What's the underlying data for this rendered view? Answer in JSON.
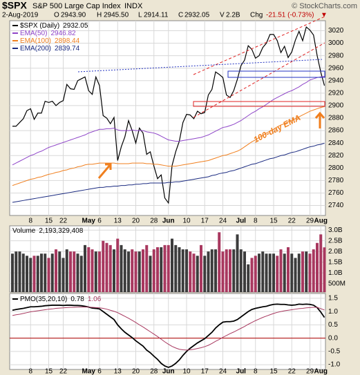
{
  "header": {
    "symbol": "$SPX",
    "name": "S&P 500 Large Cap Index",
    "exchange": "INDX",
    "source": "© StockCharts.com",
    "date": "2-Aug-2019",
    "quote": [
      {
        "label": "O",
        "value": "2943.90"
      },
      {
        "label": "H",
        "value": "2945.50"
      },
      {
        "label": "L",
        "value": "2914.11"
      },
      {
        "label": "C",
        "value": "2932.05"
      },
      {
        "label": "V",
        "value": "2.2B"
      },
      {
        "label": "Chg",
        "value": "-21.51 (-0.73%)"
      }
    ],
    "direction": "▼",
    "annotation": "100-day EMA",
    "volume_label": "Volume",
    "volume_text": "2,193,329,408"
  },
  "chart_data": [
    {
      "type": "line",
      "ylim": [
        2724,
        3036
      ],
      "yticks": [
        2740,
        2760,
        2780,
        2800,
        2820,
        2840,
        2860,
        2880,
        2900,
        2920,
        2940,
        2960,
        2980,
        3000,
        3020
      ],
      "grid": true,
      "categories": [
        null,
        null,
        null,
        null,
        null,
        "8",
        null,
        null,
        null,
        null,
        "15",
        null,
        null,
        null,
        "22",
        null,
        null,
        null,
        null,
        null,
        null,
        "May",
        null,
        null,
        "6",
        null,
        null,
        null,
        null,
        "13",
        null,
        null,
        null,
        null,
        "20",
        null,
        null,
        null,
        null,
        "28",
        null,
        null,
        null,
        "Jun",
        null,
        null,
        null,
        null,
        "10",
        null,
        null,
        null,
        null,
        "17",
        null,
        null,
        null,
        null,
        "24",
        null,
        null,
        null,
        null,
        "Jul",
        null,
        null,
        null,
        "8",
        null,
        null,
        null,
        null,
        "15",
        null,
        null,
        null,
        null,
        "22",
        null,
        null,
        null,
        null,
        "29",
        null,
        null,
        "Aug",
        null
      ],
      "series": [
        {
          "name": "$SPX (Daily)",
          "color": "#000000",
          "values": [
            2867,
            2867,
            2873,
            2879,
            2892,
            2895,
            2878,
            2888,
            2888,
            2907,
            2905,
            2907,
            2900,
            2905,
            2908,
            2934,
            2927,
            2926,
            2940,
            2943,
            2946,
            2924,
            2918,
            2946,
            2932,
            2884,
            2880,
            2871,
            2881,
            2812,
            2834,
            2850,
            2876,
            2860,
            2840,
            2864,
            2856,
            2822,
            2826,
            2803,
            2783,
            2789,
            2752,
            2744,
            2804,
            2826,
            2843,
            2873,
            2886,
            2885,
            2879,
            2891,
            2887,
            2889,
            2917,
            2926,
            2954,
            2950,
            2945,
            2917,
            2913,
            2924,
            2942,
            2964,
            2973,
            2996,
            2990,
            2976,
            2980,
            2993,
            3000,
            3014,
            3014,
            3004,
            2985,
            2995,
            2977,
            2986,
            3005,
            3019,
            3004,
            3026,
            3021,
            3013,
            2980,
            2953.56,
            2932.05
          ]
        },
        {
          "name": "EMA(50)",
          "color": "#8e44c8",
          "values": [
            2805,
            2808,
            2811,
            2814,
            2817,
            2820,
            2822,
            2825,
            2827,
            2830,
            2833,
            2835,
            2837,
            2839,
            2841,
            2843,
            2845,
            2847,
            2849,
            2851,
            2853,
            2856,
            2858,
            2860,
            2862,
            2862,
            2863,
            2863,
            2864,
            2861,
            2860,
            2860,
            2860,
            2861,
            2860,
            2860,
            2860,
            2858,
            2857,
            2856,
            2854,
            2851,
            2848,
            2845,
            2844,
            2843,
            2843,
            2844,
            2845,
            2846,
            2847,
            2848,
            2849,
            2851,
            2853,
            2856,
            2859,
            2862,
            2865,
            2866,
            2868,
            2870,
            2873,
            2876,
            2880,
            2884,
            2888,
            2891,
            2895,
            2898,
            2902,
            2906,
            2910,
            2913,
            2916,
            2919,
            2922,
            2924,
            2927,
            2930,
            2934,
            2937,
            2941,
            2943,
            2945,
            2946,
            2946.82
          ]
        },
        {
          "name": "EMA(100)",
          "color": "#f07f1e",
          "values": [
            2772,
            2774,
            2776,
            2778,
            2780,
            2782,
            2783,
            2785,
            2786,
            2788,
            2790,
            2791,
            2793,
            2794,
            2796,
            2797,
            2799,
            2800,
            2802,
            2803,
            2805,
            2806,
            2806,
            2807,
            2808,
            2808,
            2808,
            2808,
            2808,
            2807,
            2807,
            2807,
            2807,
            2808,
            2808,
            2808,
            2808,
            2807,
            2807,
            2806,
            2806,
            2805,
            2804,
            2803,
            2803,
            2803,
            2804,
            2805,
            2806,
            2807,
            2808,
            2809,
            2810,
            2811,
            2812,
            2814,
            2816,
            2818,
            2820,
            2821,
            2823,
            2825,
            2827,
            2830,
            2834,
            2838,
            2842,
            2845,
            2849,
            2852,
            2856,
            2859,
            2862,
            2866,
            2869,
            2871,
            2874,
            2876,
            2879,
            2882,
            2885,
            2888,
            2891,
            2893,
            2895,
            2897,
            2898.44
          ]
        },
        {
          "name": "EMA(200)",
          "color": "#1a2a80",
          "values": [
            2745,
            2746,
            2747,
            2748,
            2749,
            2750,
            2751,
            2752,
            2753,
            2754,
            2755,
            2756,
            2757,
            2758,
            2759,
            2760,
            2761,
            2762,
            2763,
            2764,
            2765,
            2766,
            2767,
            2768,
            2769,
            2769,
            2770,
            2770,
            2771,
            2771,
            2772,
            2772,
            2773,
            2773,
            2774,
            2774,
            2775,
            2775,
            2776,
            2776,
            2776,
            2776,
            2776,
            2777,
            2777,
            2778,
            2778,
            2779,
            2780,
            2781,
            2782,
            2783,
            2784,
            2785,
            2786,
            2788,
            2789,
            2791,
            2792,
            2793,
            2795,
            2796,
            2798,
            2800,
            2802,
            2804,
            2806,
            2807,
            2809,
            2811,
            2813,
            2815,
            2816,
            2818,
            2820,
            2821,
            2823,
            2825,
            2826,
            2828,
            2830,
            2832,
            2834,
            2835,
            2837,
            2838,
            2839.74
          ]
        }
      ]
    },
    {
      "type": "bar",
      "ylim": [
        0.1,
        3.2
      ],
      "grid": true,
      "up_color": "#3c3c3c",
      "down_color": "#a8385f",
      "yticks": [
        {
          "value": 3,
          "label": "3.0B"
        },
        {
          "value": 2.5,
          "label": "2.5B"
        },
        {
          "value": 2,
          "label": "2.0B"
        },
        {
          "value": 1.5,
          "label": "1.5B"
        },
        {
          "value": 1,
          "label": "1.0B"
        },
        {
          "value": 0.5,
          "label": "500M"
        }
      ],
      "values": [
        1.9,
        2.0,
        2.0,
        1.9,
        1.8,
        1.7,
        1.8,
        1.8,
        1.9,
        1.9,
        1.7,
        1.9,
        2.1,
        2.0,
        1.7,
        2.1,
        2.0,
        2.0,
        1.9,
        1.8,
        2.3,
        2.2,
        2.1,
        2.0,
        2.0,
        2.5,
        2.4,
        2.3,
        2.1,
        2.6,
        2.3,
        2.1,
        2.0,
        2.1,
        2.0,
        2.0,
        2.1,
        2.3,
        1.8,
        2.1,
        2.2,
        2.2,
        2.3,
        2.3,
        2.6,
        2.3,
        2.2,
        2.1,
        2.1,
        2.0,
        1.9,
        1.8,
        2.3,
        1.8,
        2.0,
        2.1,
        2.1,
        2.9,
        2.0,
        2.1,
        2.1,
        2.1,
        2.8,
        2.1,
        2.0,
        1.4,
        1.7,
        1.8,
        1.9,
        2.0,
        1.9,
        1.9,
        1.9,
        1.8,
        2.1,
        1.9,
        2.2,
        1.9,
        1.7,
        1.9,
        2.0,
        2.0,
        1.9,
        2.1,
        2.4,
        2.8,
        2.193329408
      ]
    },
    {
      "type": "line",
      "ylim": [
        -1.18,
        1.68
      ],
      "grid": true,
      "zero_color": "#b00000",
      "yticks": [
        1.5,
        {
          "value": 1,
          "label": "1.0"
        },
        0.5,
        {
          "value": 0,
          "label": "0.0"
        },
        -0.5,
        {
          "value": -1,
          "label": "-1.0"
        }
      ],
      "categories": [
        null,
        null,
        null,
        null,
        null,
        "8",
        null,
        null,
        null,
        null,
        "15",
        null,
        null,
        null,
        "22",
        null,
        null,
        null,
        null,
        null,
        null,
        "May",
        null,
        null,
        "6",
        null,
        null,
        null,
        null,
        "13",
        null,
        null,
        null,
        null,
        "20",
        null,
        null,
        null,
        null,
        "28",
        null,
        null,
        null,
        "Jun",
        null,
        null,
        null,
        null,
        "10",
        null,
        null,
        null,
        null,
        "17",
        null,
        null,
        null,
        null,
        "24",
        null,
        null,
        null,
        null,
        "Jul",
        null,
        null,
        null,
        "8",
        null,
        null,
        null,
        null,
        "15",
        null,
        null,
        null,
        null,
        "22",
        null,
        null,
        null,
        null,
        "29",
        null,
        null,
        "Aug",
        null
      ],
      "series": [
        {
          "name": "PMO(35,20,10)",
          "color": "#000000",
          "values": [
            1.05,
            1.08,
            1.1,
            1.12,
            1.15,
            1.18,
            1.18,
            1.19,
            1.2,
            1.22,
            1.23,
            1.24,
            1.24,
            1.24,
            1.23,
            1.24,
            1.24,
            1.23,
            1.23,
            1.22,
            1.2,
            1.17,
            1.13,
            1.12,
            1.1,
            1.0,
            0.9,
            0.8,
            0.7,
            0.5,
            0.35,
            0.22,
            0.12,
            0.02,
            -0.1,
            -0.2,
            -0.3,
            -0.45,
            -0.55,
            -0.68,
            -0.8,
            -0.95,
            -1.05,
            -1.1,
            -1.05,
            -0.95,
            -0.82,
            -0.65,
            -0.5,
            -0.38,
            -0.28,
            -0.18,
            -0.1,
            -0.02,
            0.1,
            0.22,
            0.38,
            0.5,
            0.6,
            0.62,
            0.62,
            0.64,
            0.7,
            0.8,
            0.9,
            1.0,
            1.08,
            1.12,
            1.15,
            1.18,
            1.2,
            1.24,
            1.27,
            1.28,
            1.27,
            1.27,
            1.25,
            1.24,
            1.25,
            1.28,
            1.27,
            1.28,
            1.27,
            1.24,
            1.15,
            0.98,
            0.78
          ]
        },
        {
          "color": "#a8385f",
          "values": [
            0.85,
            0.88,
            0.9,
            0.93,
            0.96,
            0.99,
            1.01,
            1.03,
            1.05,
            1.07,
            1.09,
            1.1,
            1.12,
            1.13,
            1.14,
            1.15,
            1.16,
            1.16,
            1.17,
            1.17,
            1.17,
            1.17,
            1.16,
            1.15,
            1.14,
            1.12,
            1.09,
            1.05,
            1.01,
            0.96,
            0.89,
            0.82,
            0.75,
            0.67,
            0.59,
            0.5,
            0.42,
            0.33,
            0.24,
            0.15,
            0.06,
            -0.04,
            -0.14,
            -0.23,
            -0.31,
            -0.37,
            -0.42,
            -0.44,
            -0.45,
            -0.44,
            -0.42,
            -0.39,
            -0.36,
            -0.32,
            -0.27,
            -0.2,
            -0.12,
            -0.05,
            0.03,
            0.1,
            0.17,
            0.23,
            0.3,
            0.37,
            0.44,
            0.52,
            0.59,
            0.66,
            0.72,
            0.78,
            0.83,
            0.88,
            0.93,
            0.97,
            1.0,
            1.03,
            1.05,
            1.07,
            1.09,
            1.11,
            1.12,
            1.14,
            1.15,
            1.16,
            1.16,
            1.11,
            1.06
          ]
        }
      ]
    }
  ]
}
